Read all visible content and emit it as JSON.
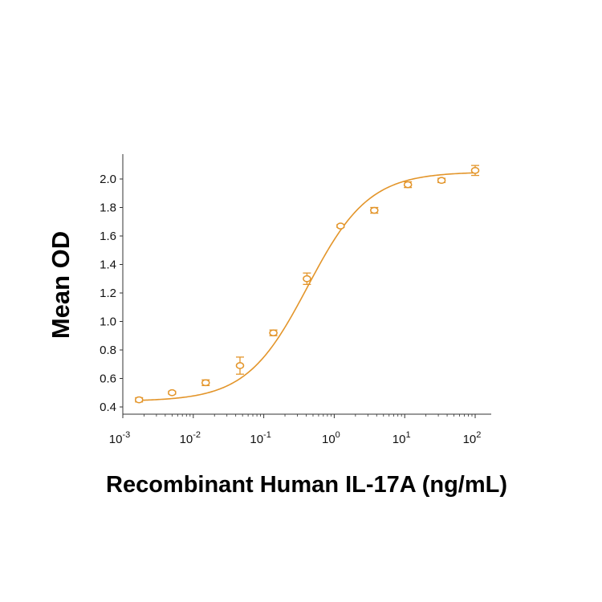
{
  "chart_data": {
    "type": "scatter",
    "title": "",
    "xlabel": "Recombinant Human IL-17A (ng/mL)",
    "ylabel": "Mean OD",
    "x_scale": "log",
    "xlim": [
      0.001,
      100
    ],
    "ylim": [
      0.4,
      2.1
    ],
    "grid": false,
    "legend": "none",
    "x_ticks": [
      {
        "base": "10",
        "exp": "-3"
      },
      {
        "base": "10",
        "exp": "-2"
      },
      {
        "base": "10",
        "exp": "-1"
      },
      {
        "base": "10",
        "exp": "0"
      },
      {
        "base": "10",
        "exp": "1"
      },
      {
        "base": "10",
        "exp": "2"
      }
    ],
    "y_ticks": [
      "0.4",
      "0.6",
      "0.8",
      "1.0",
      "1.2",
      "1.4",
      "1.6",
      "1.8",
      "2.0"
    ],
    "color": "#E3952A",
    "series": [
      {
        "x": [
          0.0017,
          0.005,
          0.015,
          0.046,
          0.137,
          0.41,
          1.23,
          3.7,
          11.1,
          33.3,
          100
        ],
        "y": [
          0.45,
          0.5,
          0.57,
          0.69,
          0.92,
          1.3,
          1.67,
          1.78,
          1.96,
          1.99,
          2.06
        ],
        "error": [
          0.015,
          0.01,
          0.02,
          0.06,
          0.02,
          0.04,
          0.01,
          0.02,
          0.02,
          0.015,
          0.035
        ]
      }
    ],
    "fit_curve": {
      "model": "4PL",
      "bottom": 0.44,
      "top": 2.05,
      "ec50": 0.42,
      "hill": 1.0
    }
  }
}
